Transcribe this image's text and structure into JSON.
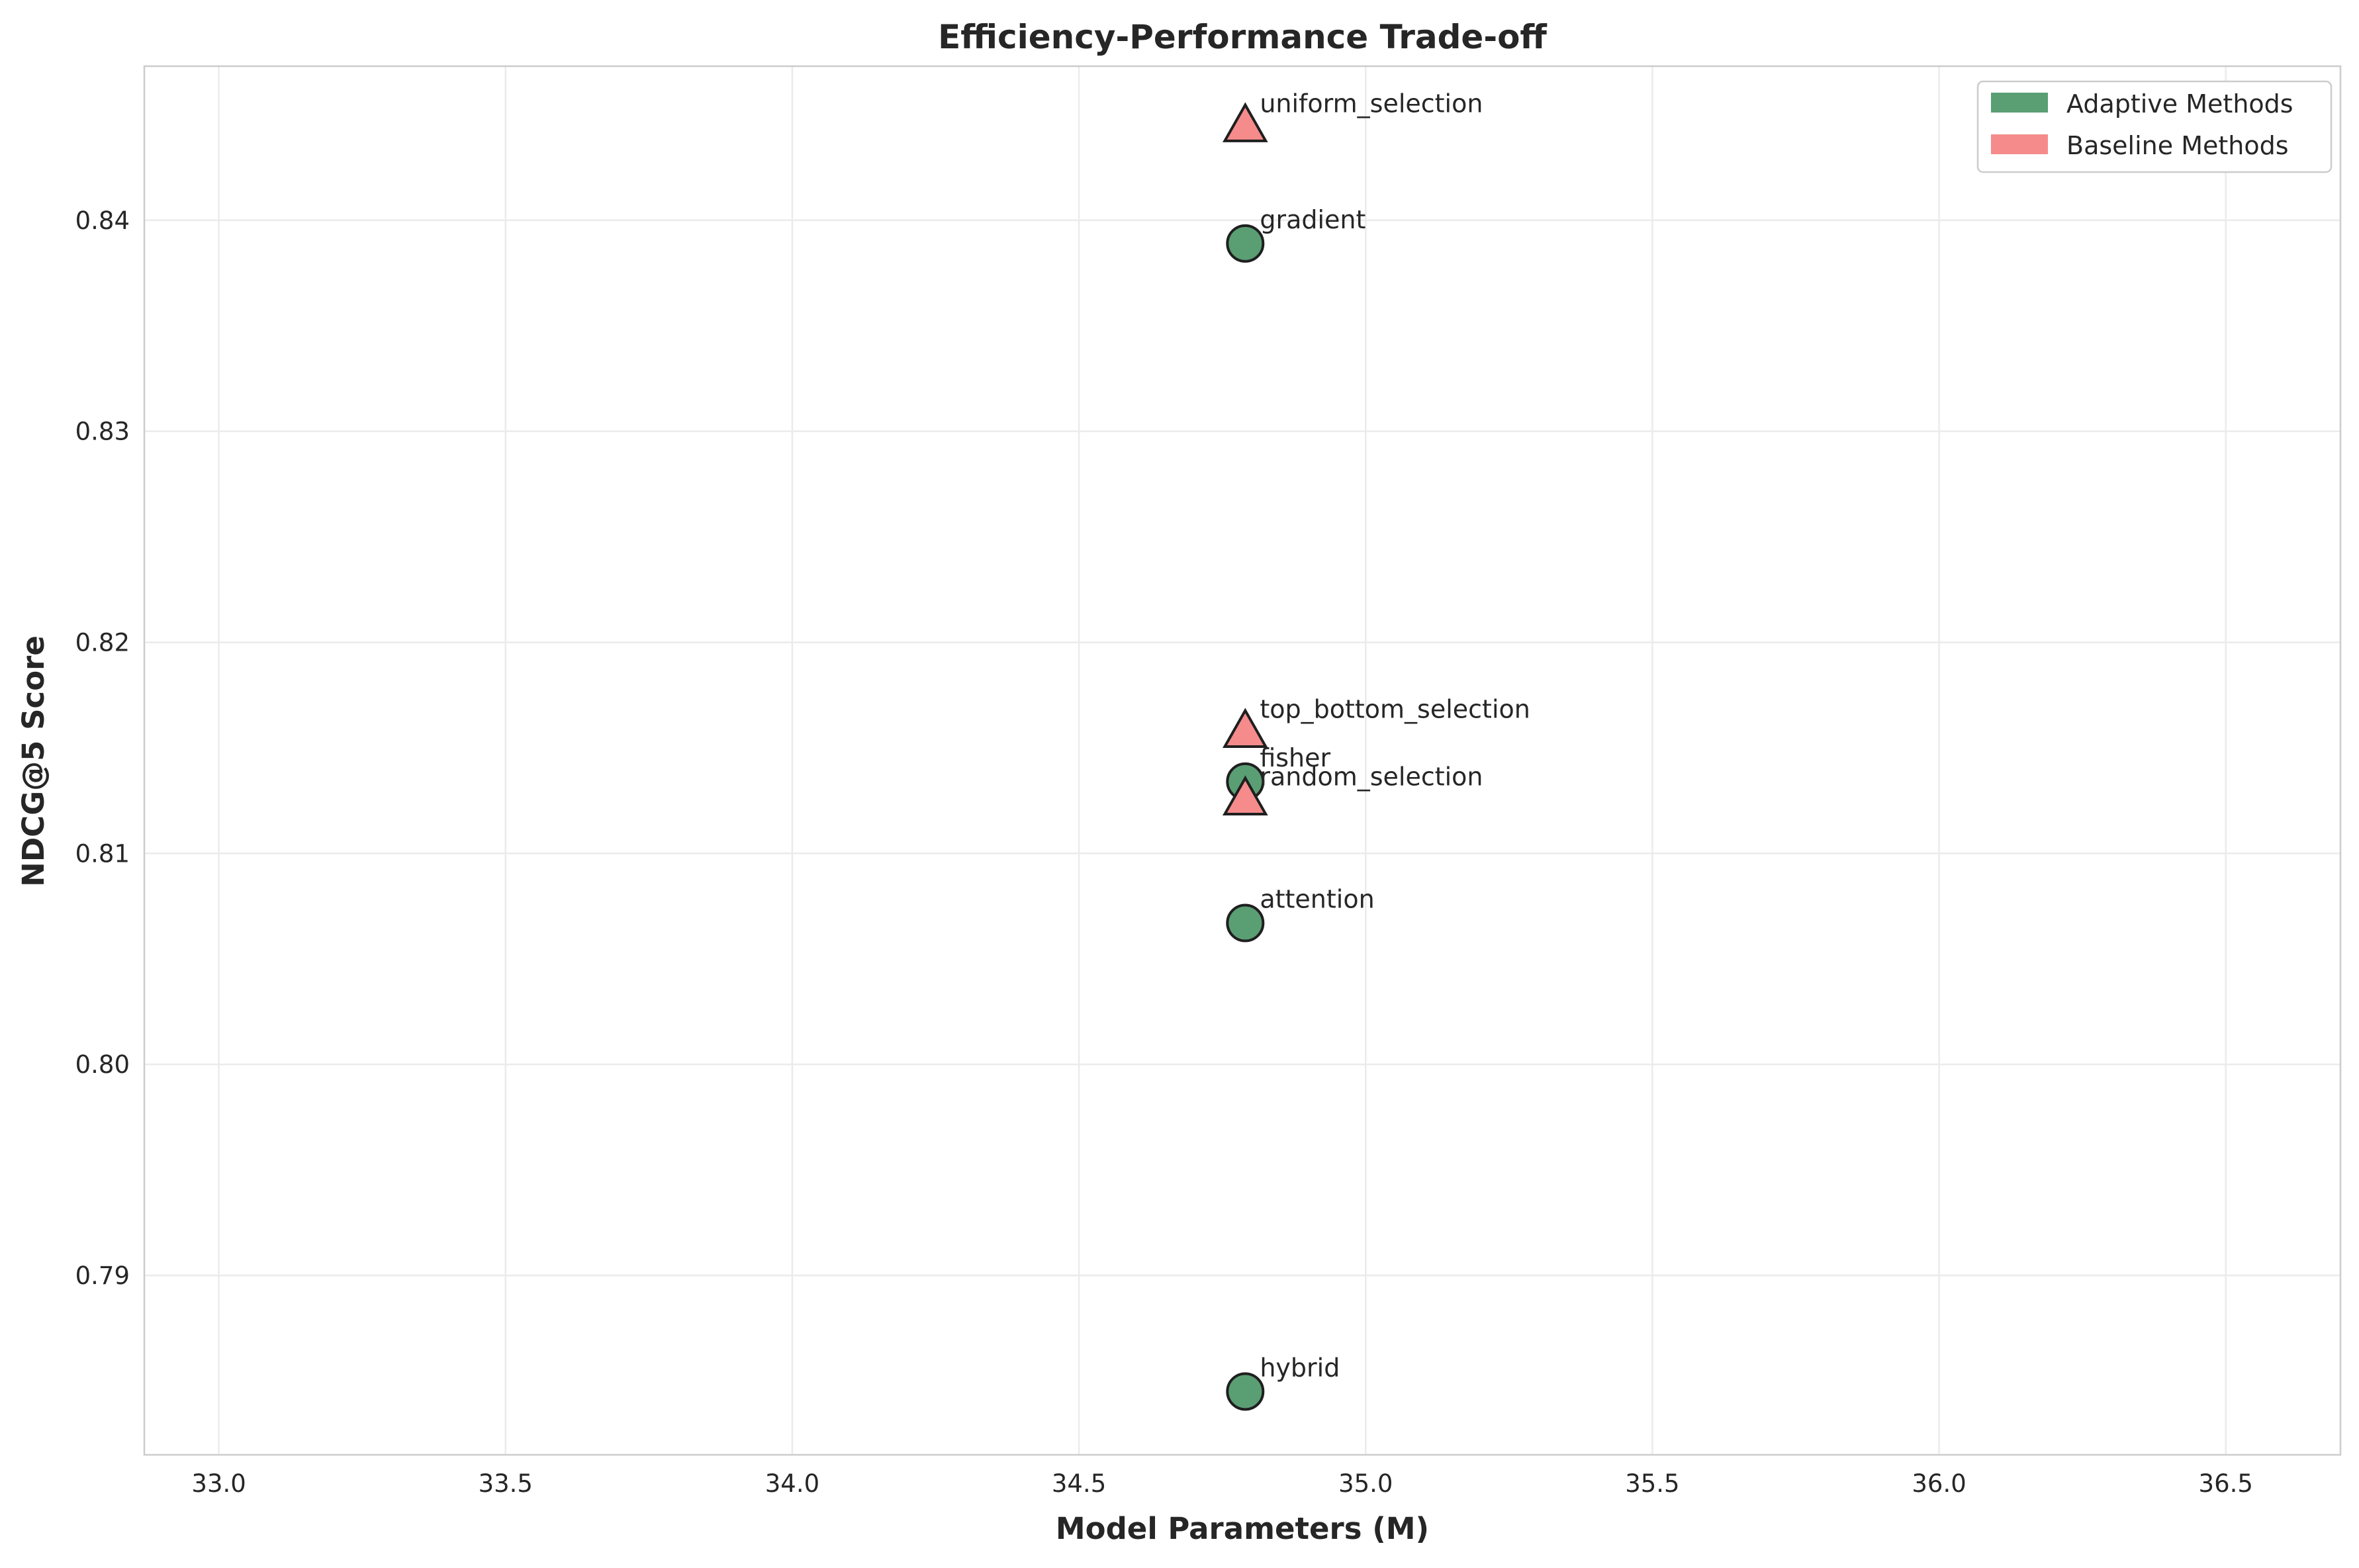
{
  "chart_data": {
    "type": "scatter",
    "title": "Efficiency-Performance Trade-off",
    "xlabel": "Model Parameters (M)",
    "ylabel": "NDCG@5 Score",
    "xlim": [
      32.87,
      36.7
    ],
    "ylim": [
      0.7815,
      0.8473
    ],
    "xticks": [
      33.0,
      33.5,
      34.0,
      34.5,
      35.0,
      35.5,
      36.0,
      36.5
    ],
    "xtick_labels": [
      "33.0",
      "33.5",
      "34.0",
      "34.5",
      "35.0",
      "35.5",
      "36.0",
      "36.5"
    ],
    "yticks": [
      0.79,
      0.8,
      0.81,
      0.82,
      0.83,
      0.84
    ],
    "ytick_labels": [
      "0.79",
      "0.80",
      "0.81",
      "0.82",
      "0.83",
      "0.84"
    ],
    "grid": true,
    "legend": {
      "placement": "top-right",
      "entries": [
        {
          "label": "Adaptive Methods",
          "color": "#5a9e73"
        },
        {
          "label": "Baseline Methods",
          "color": "#f58b8b"
        }
      ]
    },
    "series": [
      {
        "name": "Adaptive Methods",
        "marker": "circle",
        "color": "#5a9e73",
        "points": [
          {
            "label": "gradient",
            "x": 34.79,
            "y": 0.8389
          },
          {
            "label": "fisher",
            "x": 34.79,
            "y": 0.8134
          },
          {
            "label": "attention",
            "x": 34.79,
            "y": 0.8067
          },
          {
            "label": "hybrid",
            "x": 34.79,
            "y": 0.7845
          }
        ]
      },
      {
        "name": "Baseline Methods",
        "marker": "triangle",
        "color": "#f58b8b",
        "points": [
          {
            "label": "uniform_selection",
            "x": 34.79,
            "y": 0.8444
          },
          {
            "label": "top_bottom_selection",
            "x": 34.79,
            "y": 0.8157
          },
          {
            "label": "random_selection",
            "x": 34.79,
            "y": 0.8125
          }
        ]
      }
    ]
  }
}
